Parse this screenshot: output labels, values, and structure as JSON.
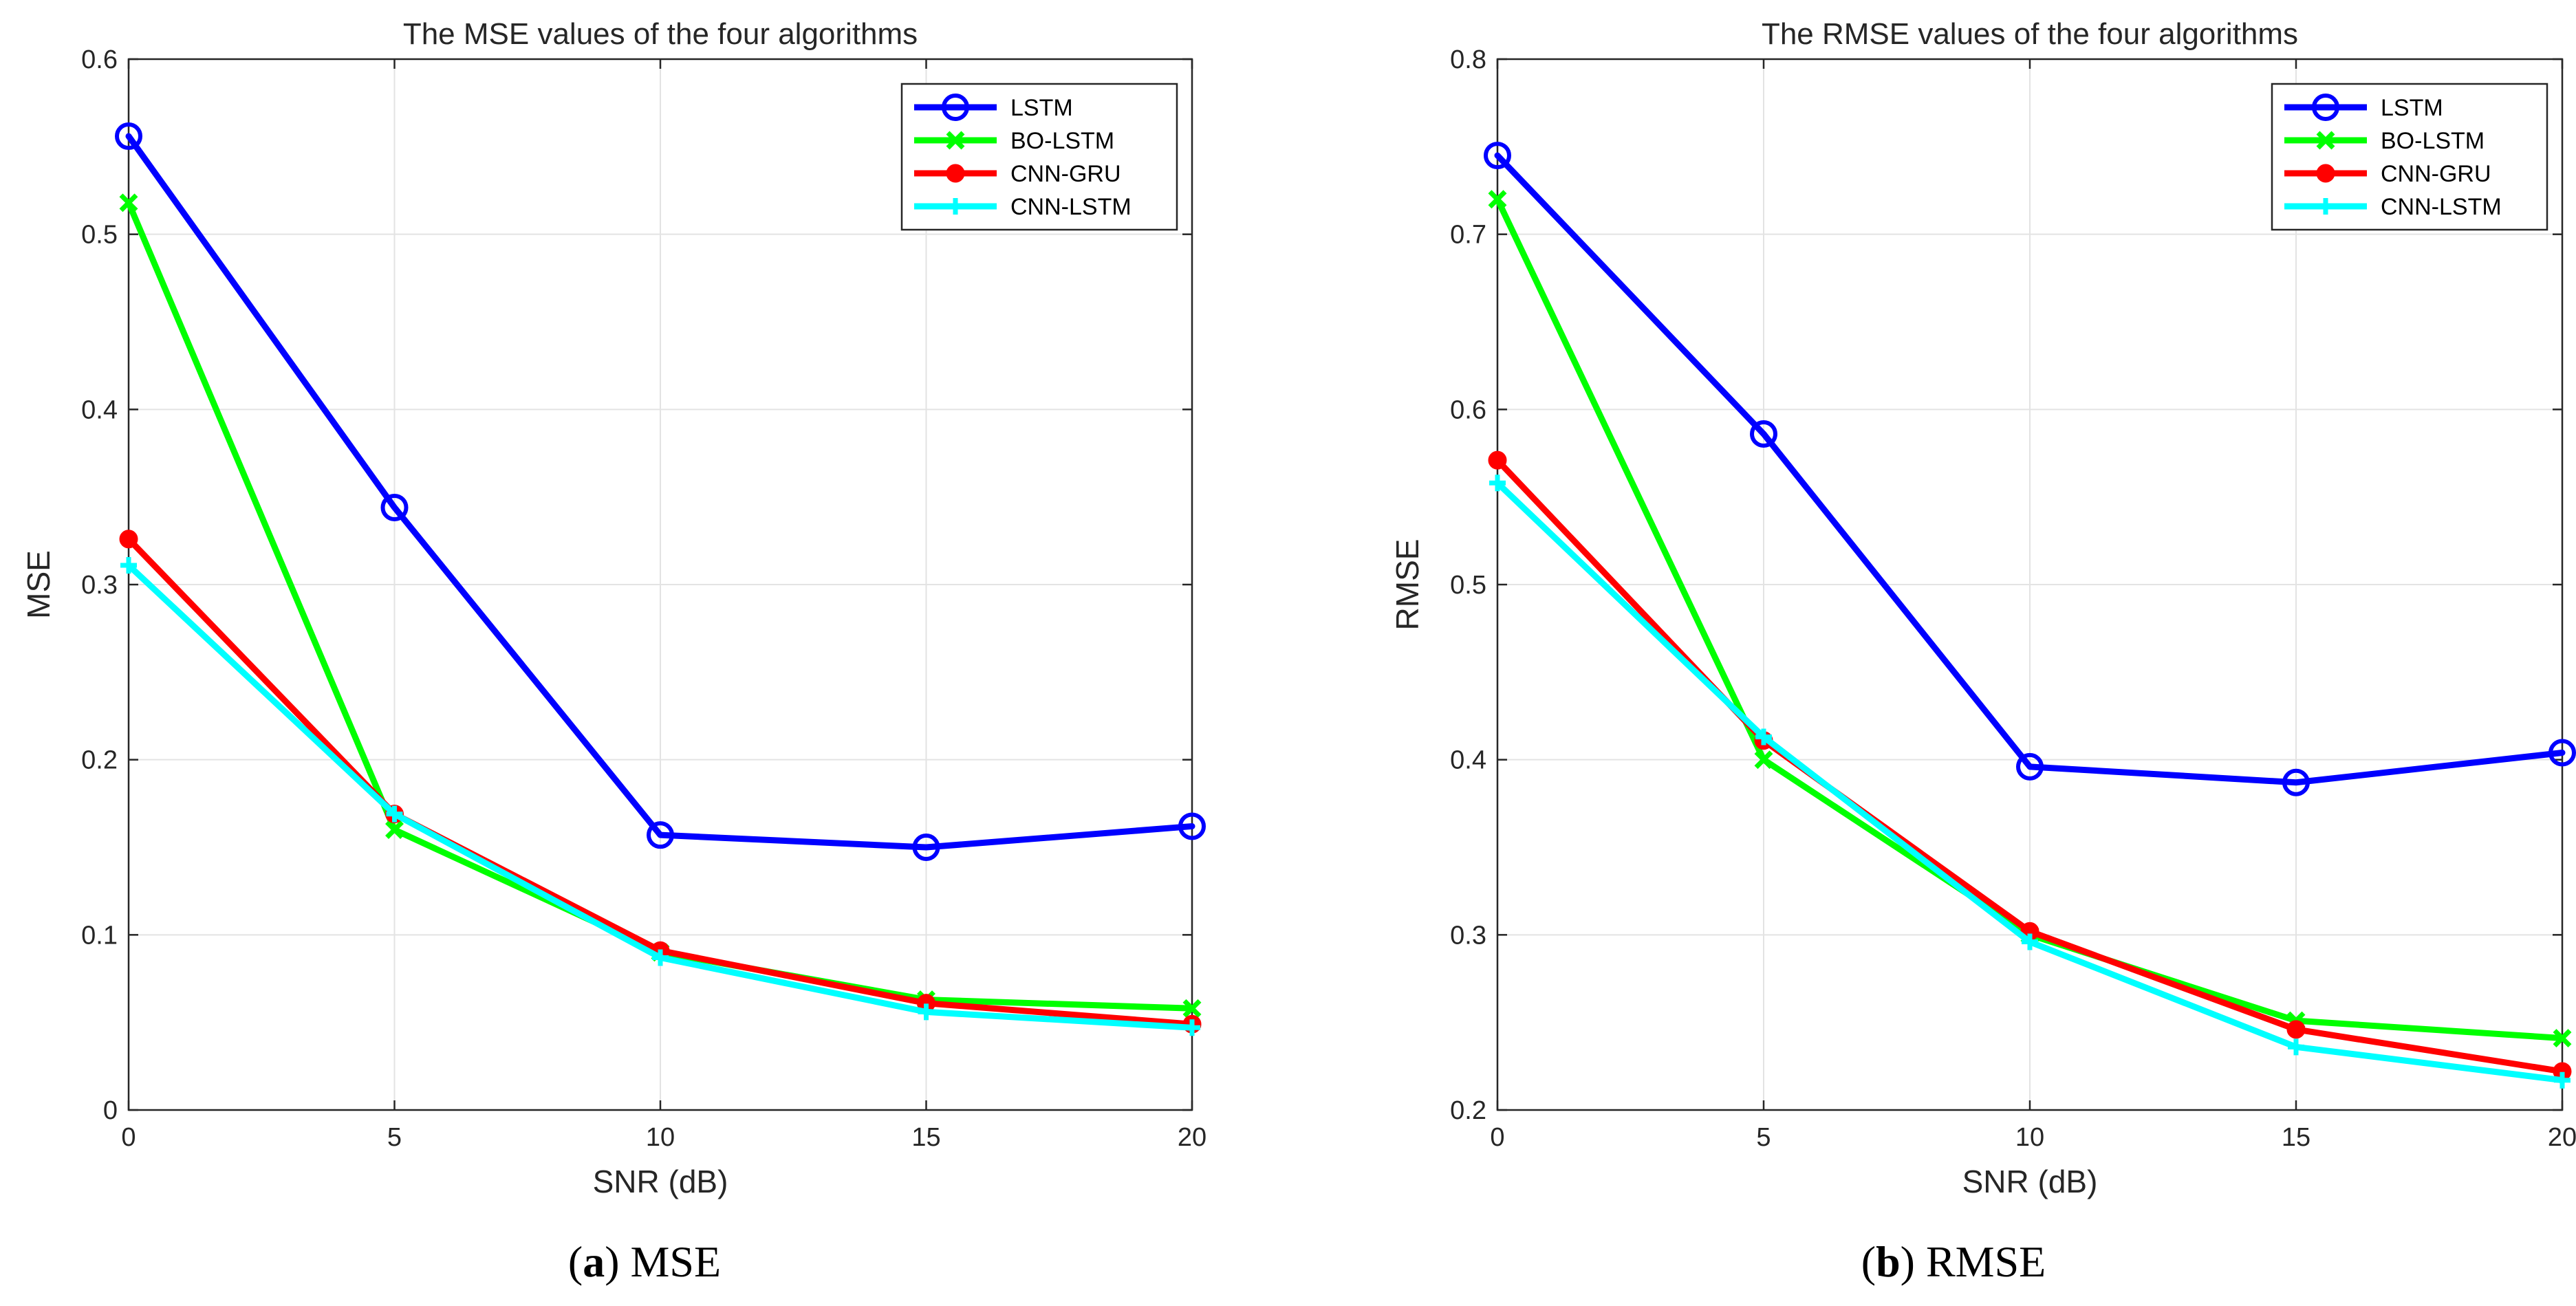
{
  "chart_data": [
    {
      "type": "line",
      "title": "The MSE values of the four algorithms",
      "xlabel": "SNR (dB)",
      "ylabel": "MSE",
      "x": [
        0,
        5,
        10,
        15,
        20
      ],
      "xlim": [
        0,
        20
      ],
      "ylim": [
        0,
        0.6
      ],
      "xticks": [
        "0",
        "5",
        "10",
        "15",
        "20"
      ],
      "yticks": [
        "0",
        "0.1",
        "0.2",
        "0.3",
        "0.4",
        "0.5",
        "0.6"
      ],
      "grid": true,
      "legend_position": "top-right",
      "caption_letter": "a",
      "caption_text": "MSE",
      "series": [
        {
          "name": "LSTM",
          "color": "#0000ff",
          "marker": "circle",
          "values": [
            0.556,
            0.344,
            0.157,
            0.15,
            0.162
          ]
        },
        {
          "name": "BO-LSTM",
          "color": "#00ff00",
          "marker": "x",
          "values": [
            0.518,
            0.16,
            0.09,
            0.063,
            0.058
          ]
        },
        {
          "name": "CNN-GRU",
          "color": "#ff0000",
          "marker": "dot",
          "values": [
            0.326,
            0.169,
            0.091,
            0.061,
            0.049
          ]
        },
        {
          "name": "CNN-LSTM",
          "color": "#00ffff",
          "marker": "plus",
          "values": [
            0.311,
            0.169,
            0.087,
            0.056,
            0.047
          ]
        }
      ]
    },
    {
      "type": "line",
      "title": "The RMSE values of the four algorithms",
      "xlabel": "SNR (dB)",
      "ylabel": "RMSE",
      "x": [
        0,
        5,
        10,
        15,
        20
      ],
      "xlim": [
        0,
        20
      ],
      "ylim": [
        0.2,
        0.8
      ],
      "xticks": [
        "0",
        "5",
        "10",
        "15",
        "20"
      ],
      "yticks": [
        "0.2",
        "0.3",
        "0.4",
        "0.5",
        "0.6",
        "0.7",
        "0.8"
      ],
      "grid": true,
      "legend_position": "top-right",
      "caption_letter": "b",
      "caption_text": "RMSE",
      "series": [
        {
          "name": "LSTM",
          "color": "#0000ff",
          "marker": "circle",
          "values": [
            0.745,
            0.586,
            0.396,
            0.387,
            0.404
          ]
        },
        {
          "name": "BO-LSTM",
          "color": "#00ff00",
          "marker": "x",
          "values": [
            0.72,
            0.4,
            0.3,
            0.251,
            0.241
          ]
        },
        {
          "name": "CNN-GRU",
          "color": "#ff0000",
          "marker": "dot",
          "values": [
            0.571,
            0.411,
            0.302,
            0.246,
            0.222
          ]
        },
        {
          "name": "CNN-LSTM",
          "color": "#00ffff",
          "marker": "plus",
          "values": [
            0.558,
            0.413,
            0.296,
            0.236,
            0.217
          ]
        }
      ]
    }
  ]
}
